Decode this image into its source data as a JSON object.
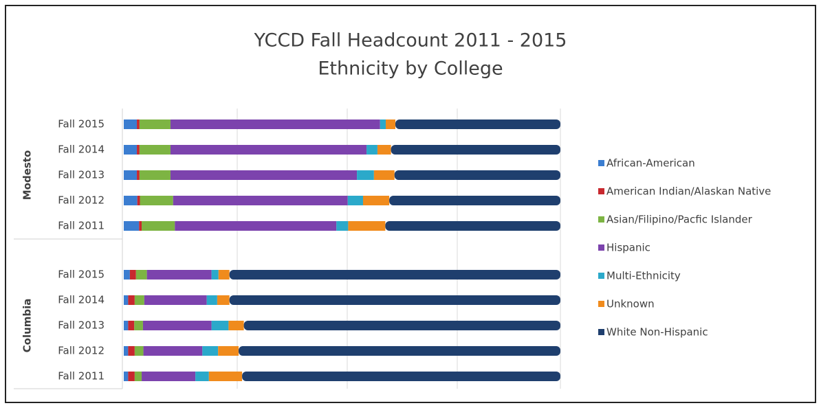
{
  "chart_data": {
    "type": "bar_stacked_100_horizontal",
    "title": "YCCD Fall Headcount  2011 - 2015",
    "subtitle": "Ethnicity by College",
    "group_labels": [
      "Modesto",
      "Columbia"
    ],
    "categories": [
      "Fall 2015",
      "Fall 2014",
      "Fall 2013",
      "Fall 2012",
      "Fall 2011",
      "Fall 2015",
      "Fall 2014",
      "Fall 2013",
      "Fall 2012",
      "Fall 2011"
    ],
    "xlim": [
      0,
      100
    ],
    "grid": true,
    "legend": "right",
    "series": [
      {
        "name": "African-American",
        "color": "#3b7dd0",
        "values": [
          3.0,
          3.0,
          3.0,
          3.1,
          3.5,
          1.4,
          1.0,
          1.0,
          1.0,
          1.0
        ]
      },
      {
        "name": "American Indian/Alaskan Native",
        "color": "#c8282e",
        "values": [
          0.6,
          0.6,
          0.6,
          0.6,
          0.6,
          1.4,
          1.5,
          1.4,
          1.5,
          1.5
        ]
      },
      {
        "name": "Asian/Filipino/Pacfic Islander",
        "color": "#7db443",
        "values": [
          7.1,
          7.1,
          7.1,
          7.6,
          7.6,
          2.5,
          2.2,
          2.0,
          2.0,
          1.6
        ]
      },
      {
        "name": "Hispanic",
        "color": "#7c43ad",
        "values": [
          48.0,
          44.9,
          42.7,
          40.0,
          37.0,
          14.8,
          14.3,
          15.7,
          13.5,
          12.3
        ]
      },
      {
        "name": "Multi-Ethnicity",
        "color": "#2ba9ca",
        "values": [
          1.3,
          2.5,
          3.9,
          3.5,
          2.7,
          1.6,
          2.4,
          3.9,
          3.6,
          3.1
        ]
      },
      {
        "name": "Unknown",
        "color": "#f08b1d",
        "values": [
          2.2,
          3.1,
          4.7,
          6.0,
          8.5,
          2.5,
          2.8,
          3.5,
          4.7,
          7.6
        ]
      },
      {
        "name": "White Non-Hispanic",
        "color": "#1f3f6e",
        "values": [
          37.8,
          38.8,
          38.0,
          39.2,
          40.1,
          75.8,
          75.8,
          72.5,
          73.7,
          72.9
        ]
      }
    ]
  }
}
